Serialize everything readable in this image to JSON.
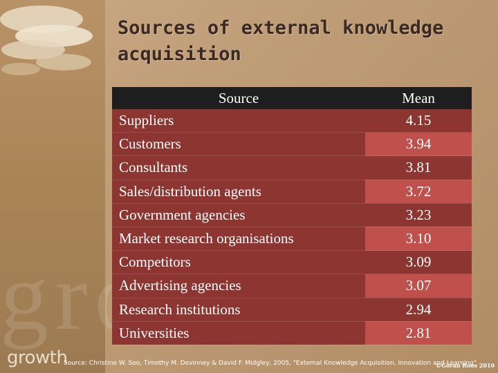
{
  "title": "Sources of external knowledge acquisition",
  "table": {
    "headers": [
      "Source",
      "Mean"
    ],
    "rows": [
      [
        "Suppliers",
        "4.15"
      ],
      [
        "Customers",
        "3.94"
      ],
      [
        "Consultants",
        "3.81"
      ],
      [
        "Sales/distribution agents",
        "3.72"
      ],
      [
        "Government agencies",
        "3.23"
      ],
      [
        "Market research organisations",
        "3.10"
      ],
      [
        "Competitors",
        "3.09"
      ],
      [
        "Advertising agencies",
        "3.07"
      ],
      [
        "Research institutions",
        "2.94"
      ],
      [
        "Universities",
        "2.81"
      ]
    ]
  },
  "logo": "growth",
  "watermark": "gro w wth",
  "source_note": "Source: Christine W. Soo, Timothy M. Devinney & David F. Midgley, 2005, \"External Knowledge Acquisition, Innovation and Learning\"",
  "copyright": "©Göran Roos 2010",
  "colors": {
    "header_bg": "#1e1e1e",
    "cell_dark": "#8d3631",
    "cell_light": "#c0504b",
    "title": "#3a2a22"
  }
}
